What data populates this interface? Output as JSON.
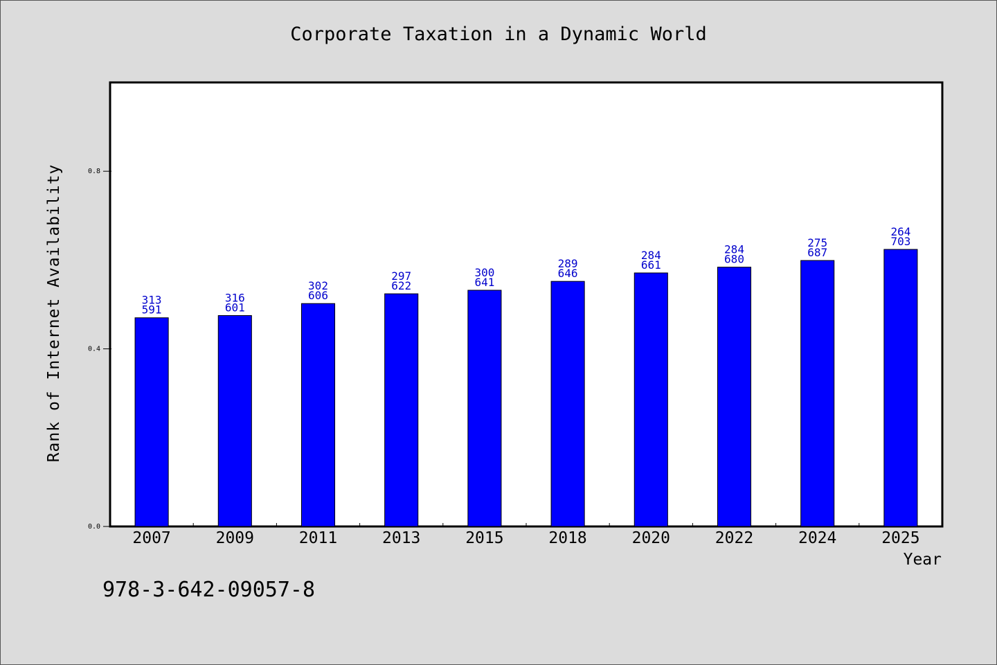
{
  "chart_data": {
    "type": "bar",
    "title": "Corporate Taxation in a Dynamic World",
    "xlabel": "Year",
    "ylabel": "Rank of Internet Availability",
    "categories": [
      "2007",
      "2009",
      "2011",
      "2013",
      "2015",
      "2018",
      "2020",
      "2022",
      "2024",
      "2025"
    ],
    "values": [
      0.47,
      0.475,
      0.502,
      0.524,
      0.532,
      0.552,
      0.571,
      0.584,
      0.599,
      0.624
    ],
    "labels_top": [
      "313",
      "316",
      "302",
      "297",
      "300",
      "289",
      "284",
      "284",
      "275",
      "264"
    ],
    "labels_bottom": [
      "591",
      "601",
      "606",
      "622",
      "641",
      "646",
      "661",
      "680",
      "687",
      "703"
    ],
    "ylim": [
      0,
      1.0
    ],
    "yticks": [
      0.0,
      0.4,
      0.8
    ],
    "ytick_labels": [
      "0.0",
      "0.4",
      "0.8"
    ],
    "grid": false,
    "colors": {
      "bar": "#0000ff",
      "label": "#0000cc",
      "background": "#dcdcdc",
      "plot_bg": "#ffffff"
    }
  },
  "footer": {
    "isbn": "978-3-642-09057-8"
  }
}
